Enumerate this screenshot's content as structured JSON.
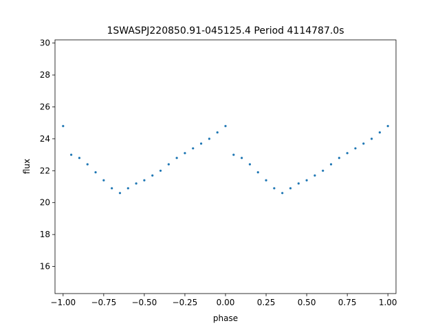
{
  "chart_data": {
    "type": "scatter",
    "title": "1SWASPJ220850.91-045125.4 Period 4114787.0s",
    "xlabel": "phase",
    "ylabel": "flux",
    "xlim": [
      -1.05,
      1.05
    ],
    "ylim": [
      14.3,
      30.2
    ],
    "xticks": [
      -1.0,
      -0.75,
      -0.5,
      -0.25,
      0.0,
      0.25,
      0.5,
      0.75,
      1.0
    ],
    "xtick_labels": [
      "−1.00",
      "−0.75",
      "−0.50",
      "−0.25",
      "0.00",
      "0.25",
      "0.50",
      "0.75",
      "1.00"
    ],
    "yticks": [
      16,
      18,
      20,
      22,
      24,
      26,
      28,
      30
    ],
    "ytick_labels": [
      "16",
      "18",
      "20",
      "22",
      "24",
      "26",
      "28",
      "30"
    ],
    "grid": false,
    "marker_color": "#1f77b4",
    "series": [
      {
        "x": [
          -1.0,
          -0.95,
          -0.9,
          -0.85,
          -0.8,
          -0.75,
          -0.7,
          -0.65,
          -0.6,
          -0.55,
          -0.5,
          -0.45,
          -0.4,
          -0.35,
          -0.3,
          -0.25,
          -0.2,
          -0.15,
          -0.1,
          -0.05,
          0.0,
          0.05,
          0.1,
          0.15,
          0.2,
          0.25,
          0.3,
          0.35,
          0.4,
          0.45,
          0.5,
          0.55,
          0.6,
          0.65,
          0.7,
          0.75,
          0.8,
          0.85,
          0.9,
          0.95,
          1.0
        ],
        "y": [
          24.8,
          23.0,
          22.8,
          22.4,
          21.9,
          21.4,
          20.9,
          20.6,
          20.9,
          21.2,
          21.4,
          21.7,
          22.0,
          22.4,
          22.8,
          23.1,
          23.4,
          23.7,
          24.0,
          24.4,
          24.8,
          23.0,
          22.8,
          22.4,
          21.9,
          21.4,
          20.9,
          20.6,
          20.9,
          21.2,
          21.4,
          21.7,
          22.0,
          22.4,
          22.8,
          23.1,
          23.4,
          23.7,
          24.0,
          24.4,
          24.8
        ]
      }
    ]
  }
}
